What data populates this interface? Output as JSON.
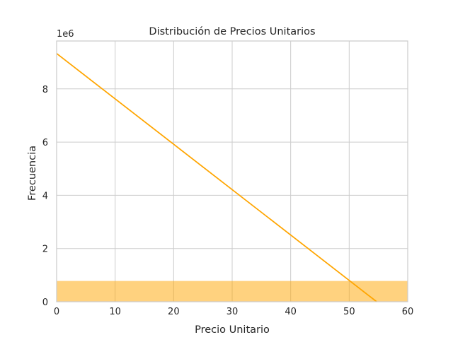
{
  "chart_data": {
    "type": "area",
    "title": "Distribución de Precios Unitarios",
    "xlabel": "Precio Unitario",
    "ylabel": "Frecuencia",
    "y_offset_label": "1e6",
    "y_scale": 1000000,
    "xlim": [
      0,
      60
    ],
    "ylim": [
      0,
      9800000
    ],
    "x_ticks": [
      0,
      10,
      20,
      30,
      40,
      50,
      60
    ],
    "y_ticks": [
      0,
      2000000,
      4000000,
      6000000,
      8000000
    ],
    "y_tick_labels": [
      "0",
      "2",
      "4",
      "6",
      "8"
    ],
    "grid": true,
    "legend": "none",
    "series": [
      {
        "kind": "histogram-bar",
        "color": "#ffa500",
        "opacity": 0.5,
        "bins": [
          {
            "x0": 0,
            "x1": 60,
            "count": 780000
          }
        ]
      },
      {
        "kind": "line",
        "color": "#ffa500",
        "points": [
          {
            "x": 0,
            "y": 9330000
          },
          {
            "x": 54.7,
            "y": 0
          }
        ]
      }
    ]
  }
}
